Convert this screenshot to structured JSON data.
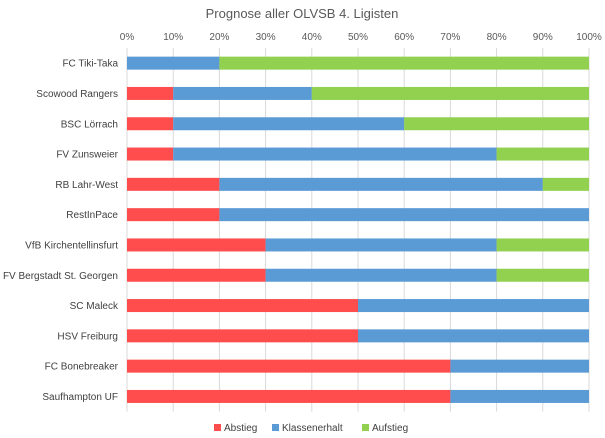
{
  "chart_data": {
    "type": "bar",
    "orientation": "horizontal",
    "stacked": "percent",
    "title": "Prognose aller OLVSB 4. Ligisten",
    "xlabel": "",
    "ylabel": "",
    "xlim": [
      0,
      100
    ],
    "x_ticks": [
      "0%",
      "10%",
      "20%",
      "30%",
      "40%",
      "50%",
      "60%",
      "70%",
      "80%",
      "90%",
      "100%"
    ],
    "grid": true,
    "legend_position": "bottom",
    "categories": [
      "FC Tiki-Taka",
      "Scowood Rangers",
      "BSC Lörrach",
      "FV Zunsweier",
      "RB Lahr-West",
      "RestInPace",
      "VfB Kirchentellinsfurt",
      "FV Bergstadt St. Georgen",
      "SC Maleck",
      "HSV Freiburg",
      "FC Bonebreaker",
      "Saufhampton UF"
    ],
    "series": [
      {
        "name": "Abstieg",
        "color": "#ff4d4d",
        "values": [
          0,
          10,
          10,
          10,
          20,
          20,
          30,
          30,
          50,
          50,
          70,
          70
        ]
      },
      {
        "name": "Klassenerhalt",
        "color": "#5b9bd5",
        "values": [
          20,
          30,
          50,
          70,
          70,
          80,
          50,
          50,
          50,
          50,
          30,
          30
        ]
      },
      {
        "name": "Aufstieg",
        "color": "#92d050",
        "values": [
          80,
          60,
          40,
          20,
          10,
          0,
          20,
          20,
          0,
          0,
          0,
          0
        ]
      }
    ]
  }
}
